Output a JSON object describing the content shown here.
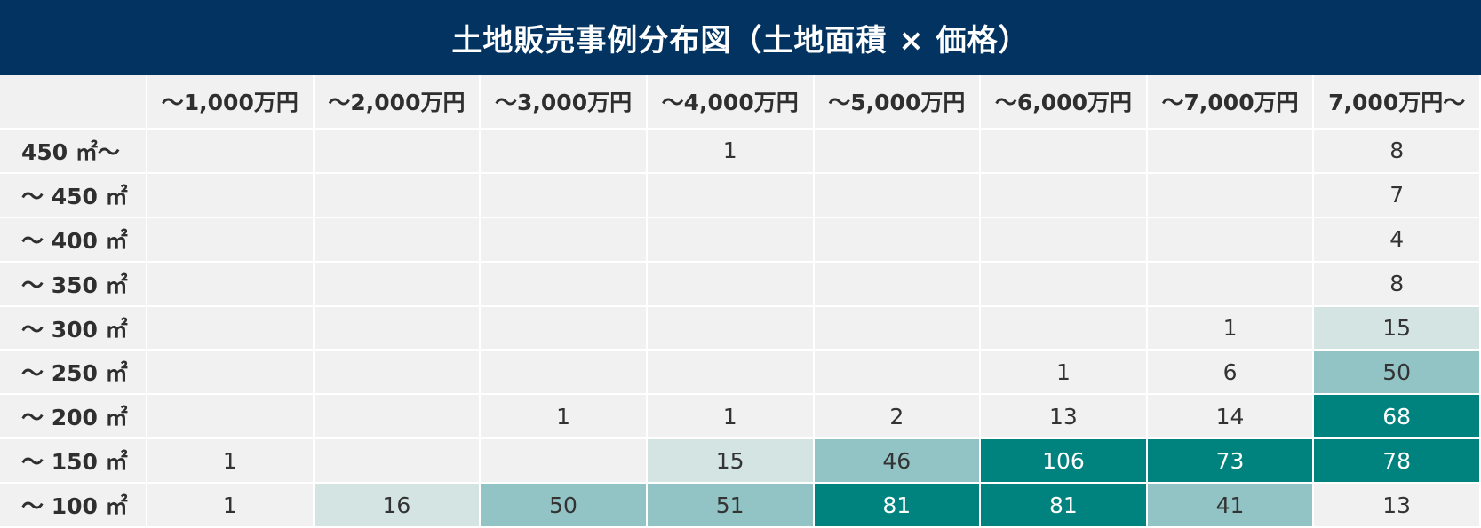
{
  "title": "土地販売事例分布図（土地面積 × 価格）",
  "chart_data": {
    "type": "heatmap",
    "title": "土地販売事例分布図（土地面積 × 価格）",
    "columns": [
      "～1,000万円",
      "～2,000万円",
      "～3,000万円",
      "～4,000万円",
      "～5,000万円",
      "～6,000万円",
      "～7,000万円",
      "7,000万円～"
    ],
    "rows": [
      "450 ㎡～",
      "～ 450 ㎡",
      "～ 400 ㎡",
      "～ 350 ㎡",
      "～ 300 ㎡",
      "～ 250 ㎡",
      "～ 200 ㎡",
      "～ 150 ㎡",
      "～ 100 ㎡"
    ],
    "values": [
      [
        null,
        null,
        null,
        1,
        null,
        null,
        null,
        8
      ],
      [
        null,
        null,
        null,
        null,
        null,
        null,
        null,
        7
      ],
      [
        null,
        null,
        null,
        null,
        null,
        null,
        null,
        4
      ],
      [
        null,
        null,
        null,
        null,
        null,
        null,
        null,
        8
      ],
      [
        null,
        null,
        null,
        null,
        null,
        null,
        1,
        15
      ],
      [
        null,
        null,
        null,
        null,
        null,
        1,
        6,
        50
      ],
      [
        null,
        null,
        1,
        1,
        2,
        13,
        14,
        68
      ],
      [
        1,
        null,
        null,
        15,
        46,
        106,
        73,
        78
      ],
      [
        1,
        16,
        50,
        51,
        81,
        81,
        41,
        13
      ]
    ],
    "color_thresholds": [
      {
        "min": 60,
        "color": "#00827f",
        "text_color": "#ffffff"
      },
      {
        "min": 40,
        "color": "#92c3c5",
        "text_color": "#333333"
      },
      {
        "min": 15,
        "color": "#d3e4e3",
        "text_color": "#333333"
      },
      {
        "min": 0,
        "color": "#f1f1f1",
        "text_color": "#333333"
      }
    ]
  },
  "colors": {
    "title_background": "#023361",
    "title_text": "#ffffff",
    "cell_background": "#f1f1f1",
    "grid_lines": "#ffffff"
  }
}
